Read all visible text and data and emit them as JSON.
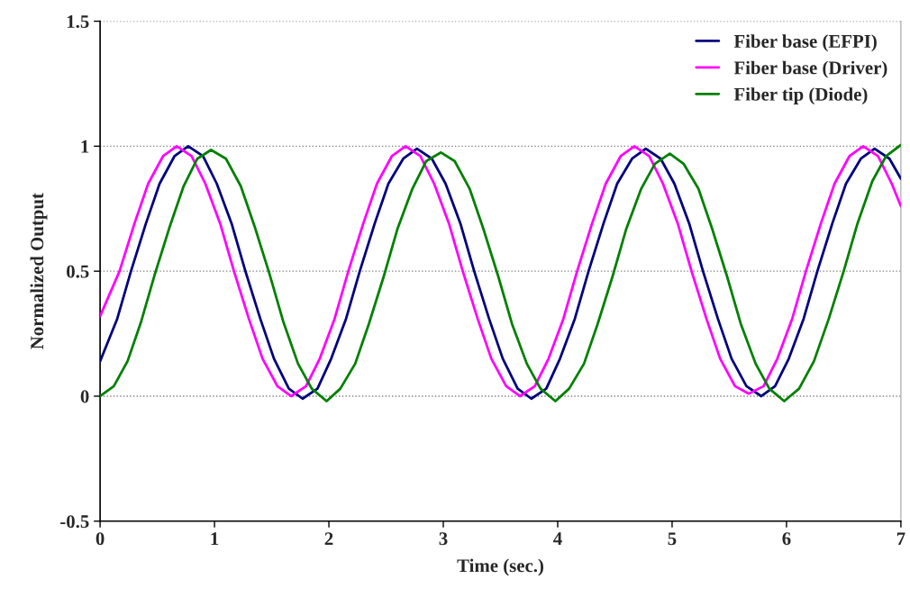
{
  "chart_data": {
    "type": "line",
    "xlabel": "Time (sec.)",
    "ylabel": "Normalized Output",
    "xlim": [
      0,
      7
    ],
    "xticks": [
      0,
      1,
      2,
      3,
      4,
      5,
      6,
      7
    ],
    "ylim": [
      -0.5,
      1.5
    ],
    "yticks": [
      -0.5,
      0,
      0.5,
      1,
      1.5
    ],
    "grid": "y",
    "legend": "top right",
    "marker": "none",
    "line_style": "solid",
    "series": [
      {
        "name": "Fiber base (EFPI)",
        "color": "#000080",
        "x": [
          0,
          0.15,
          0.27,
          0.4,
          0.52,
          0.65,
          0.77,
          0.9,
          1.02,
          1.15,
          1.27,
          1.4,
          1.52,
          1.65,
          1.77,
          1.9,
          2.02,
          2.15,
          2.27,
          2.4,
          2.52,
          2.65,
          2.77,
          2.9,
          3.02,
          3.15,
          3.27,
          3.4,
          3.52,
          3.65,
          3.77,
          3.9,
          4.02,
          4.15,
          4.27,
          4.4,
          4.52,
          4.65,
          4.77,
          4.9,
          5.02,
          5.15,
          5.27,
          5.4,
          5.52,
          5.65,
          5.78,
          5.9,
          6.02,
          6.15,
          6.27,
          6.4,
          6.52,
          6.65,
          6.77,
          6.9,
          7
        ],
        "values": [
          0.14,
          0.31,
          0.5,
          0.69,
          0.85,
          0.96,
          1.0,
          0.96,
          0.85,
          0.69,
          0.5,
          0.31,
          0.15,
          0.03,
          -0.01,
          0.03,
          0.15,
          0.31,
          0.5,
          0.69,
          0.85,
          0.95,
          0.99,
          0.95,
          0.85,
          0.69,
          0.5,
          0.31,
          0.15,
          0.03,
          -0.01,
          0.03,
          0.15,
          0.31,
          0.5,
          0.69,
          0.85,
          0.95,
          0.99,
          0.95,
          0.85,
          0.69,
          0.5,
          0.31,
          0.15,
          0.04,
          0.0,
          0.04,
          0.15,
          0.31,
          0.5,
          0.69,
          0.85,
          0.95,
          0.99,
          0.95,
          0.87
        ]
      },
      {
        "name": "Fiber base (Driver)",
        "color": "#ff00ff",
        "x": [
          0,
          0.17,
          0.3,
          0.42,
          0.55,
          0.67,
          0.8,
          0.92,
          1.05,
          1.17,
          1.3,
          1.42,
          1.55,
          1.67,
          1.8,
          1.92,
          2.05,
          2.17,
          2.3,
          2.42,
          2.55,
          2.67,
          2.8,
          2.92,
          3.05,
          3.17,
          3.3,
          3.42,
          3.55,
          3.67,
          3.8,
          3.92,
          4.05,
          4.17,
          4.3,
          4.42,
          4.55,
          4.67,
          4.8,
          4.92,
          5.05,
          5.17,
          5.3,
          5.42,
          5.55,
          5.67,
          5.8,
          5.92,
          6.05,
          6.17,
          6.3,
          6.42,
          6.55,
          6.67,
          6.8,
          6.92,
          7
        ],
        "values": [
          0.32,
          0.5,
          0.69,
          0.85,
          0.96,
          1.0,
          0.96,
          0.85,
          0.69,
          0.5,
          0.31,
          0.15,
          0.04,
          0.0,
          0.04,
          0.15,
          0.31,
          0.5,
          0.69,
          0.85,
          0.96,
          1.0,
          0.96,
          0.85,
          0.69,
          0.5,
          0.31,
          0.15,
          0.04,
          0.0,
          0.04,
          0.15,
          0.31,
          0.5,
          0.69,
          0.85,
          0.96,
          1.0,
          0.96,
          0.85,
          0.69,
          0.5,
          0.31,
          0.15,
          0.04,
          0.01,
          0.04,
          0.15,
          0.31,
          0.5,
          0.69,
          0.85,
          0.96,
          1.0,
          0.96,
          0.85,
          0.76
        ]
      },
      {
        "name": "Fiber tip (Diode)",
        "color": "#008000",
        "x": [
          0,
          0.12,
          0.24,
          0.36,
          0.48,
          0.61,
          0.73,
          0.85,
          0.97,
          1.1,
          1.23,
          1.35,
          1.48,
          1.6,
          1.73,
          1.85,
          1.98,
          2.1,
          2.23,
          2.35,
          2.48,
          2.6,
          2.73,
          2.85,
          2.98,
          3.1,
          3.23,
          3.35,
          3.48,
          3.6,
          3.73,
          3.85,
          3.98,
          4.1,
          4.23,
          4.35,
          4.48,
          4.6,
          4.73,
          4.85,
          4.98,
          5.1,
          5.23,
          5.35,
          5.48,
          5.6,
          5.73,
          5.85,
          5.98,
          6.11,
          6.24,
          6.37,
          6.5,
          6.62,
          6.75,
          6.87,
          7
        ],
        "values": [
          0.0,
          0.04,
          0.14,
          0.3,
          0.49,
          0.68,
          0.84,
          0.95,
          0.985,
          0.95,
          0.84,
          0.68,
          0.49,
          0.3,
          0.13,
          0.03,
          -0.02,
          0.03,
          0.13,
          0.29,
          0.48,
          0.67,
          0.83,
          0.94,
          0.975,
          0.94,
          0.83,
          0.67,
          0.48,
          0.29,
          0.13,
          0.03,
          -0.02,
          0.03,
          0.13,
          0.29,
          0.48,
          0.67,
          0.83,
          0.93,
          0.97,
          0.93,
          0.83,
          0.67,
          0.48,
          0.29,
          0.13,
          0.03,
          -0.02,
          0.03,
          0.14,
          0.31,
          0.5,
          0.69,
          0.86,
          0.96,
          1.005
        ]
      }
    ]
  }
}
